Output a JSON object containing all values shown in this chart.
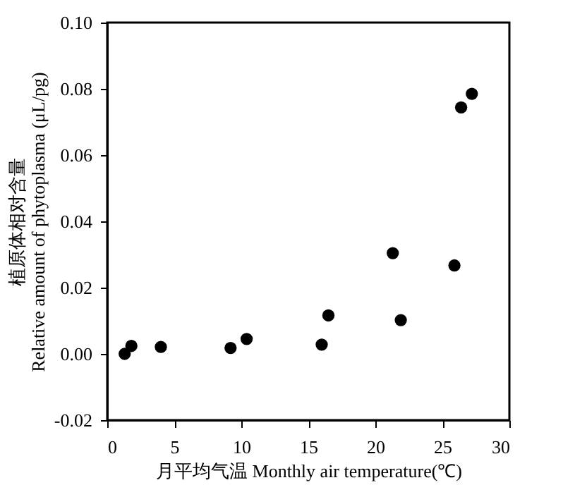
{
  "chart_data": {
    "type": "scatter",
    "xlabel": "月平均气温  Monthly air temperature(℃)",
    "ylabel": "植原体相对含量\nRelative amount of phytoplasma (μL/pg)",
    "x": [
      1.3,
      1.8,
      4.0,
      9.2,
      10.4,
      16.0,
      16.5,
      21.3,
      21.9,
      25.9,
      26.4,
      27.2
    ],
    "series": [
      {
        "color": "#000000",
        "values": [
          0.0,
          0.0024,
          0.0021,
          0.0018,
          0.0045,
          0.0028,
          0.0116,
          0.0304,
          0.0102,
          0.0267,
          0.0744,
          0.0785
        ]
      }
    ],
    "xlim": [
      0,
      30
    ],
    "xticks": [
      0,
      5,
      10,
      15,
      20,
      25,
      30
    ],
    "ylim": [
      -0.02,
      0.1
    ],
    "yticks": [
      {
        "value": -0.02,
        "label": "-0.02"
      },
      {
        "value": 0,
        "label": "0.00"
      },
      {
        "value": 0.02,
        "label": "0.02"
      },
      {
        "value": 0.04,
        "label": "0.04"
      },
      {
        "value": 0.06,
        "label": "0.06"
      },
      {
        "value": 0.08,
        "label": "0.08"
      },
      {
        "value": 0.1,
        "label": "0.10"
      }
    ],
    "marker": "circle",
    "grid": false,
    "legend": false
  }
}
